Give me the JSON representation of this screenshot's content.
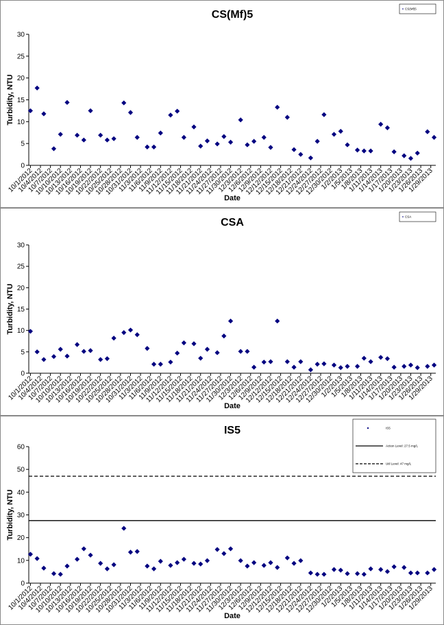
{
  "chart_data": [
    {
      "type": "scatter",
      "title": "CS(Mf)5",
      "x_label": "Date",
      "y_label": "Turbidity, NTU",
      "categories": [
        "10/1/2012",
        null,
        null,
        "10/4/2012",
        null,
        null,
        "10/7/2012",
        null,
        null,
        "10/10/2012",
        null,
        null,
        "10/13/2012",
        null,
        null,
        "10/16/2012",
        null,
        null,
        "10/19/2012",
        null,
        null,
        "10/22/2012",
        null,
        null,
        "10/25/2012",
        null,
        null,
        "10/28/2012",
        null,
        null,
        "10/31/2012",
        null,
        null,
        "11/3/2012",
        null,
        null,
        "11/6/2012",
        null,
        null,
        "11/9/2012",
        null,
        null,
        "11/12/2012",
        null,
        null,
        "11/15/2012",
        null,
        null,
        "11/18/2012",
        null,
        null,
        "11/21/2012",
        null,
        null,
        "11/24/2012",
        null,
        null,
        "11/27/2012",
        null,
        null,
        "11/30/2012",
        null,
        null,
        "12/3/2012",
        null,
        null,
        "12/6/2012",
        null,
        null,
        "12/9/2012",
        null,
        null,
        "12/12/2012",
        null,
        null,
        "12/15/2012",
        null,
        null,
        "12/18/2012",
        null,
        null,
        "12/21/2012",
        null,
        null,
        "12/24/2012",
        null,
        null,
        "12/27/2012",
        null,
        null,
        "12/30/2012",
        null,
        null,
        "1/2/2013",
        null,
        null,
        "1/5/2013",
        null,
        null,
        "1/8/2013",
        null,
        null,
        "1/11/2013",
        null,
        null,
        "1/14/2013",
        null,
        null,
        "1/17/2013",
        null,
        null,
        "1/20/2013",
        null,
        null,
        "1/23/2013",
        null,
        null,
        "1/26/2013",
        null,
        null,
        "1/29/2013",
        null
      ],
      "series": [
        {
          "name": "CS(Mf)5",
          "color": "#000080",
          "values": [
            12.5,
            null,
            17.7,
            null,
            11.8,
            null,
            null,
            3.8,
            null,
            7.1,
            null,
            14.4,
            null,
            null,
            6.9,
            null,
            5.8,
            null,
            12.5,
            null,
            null,
            6.9,
            null,
            5.8,
            null,
            6.1,
            null,
            null,
            14.3,
            null,
            12.1,
            null,
            6.4,
            null,
            null,
            4.2,
            null,
            4.2,
            null,
            7.4,
            null,
            null,
            11.5,
            null,
            12.4,
            null,
            6.4,
            null,
            null,
            8.8,
            null,
            4.4,
            null,
            5.6,
            null,
            null,
            4.9,
            null,
            6.6,
            null,
            5.3,
            null,
            null,
            10.4,
            null,
            4.7,
            null,
            5.5,
            null,
            null,
            6.4,
            null,
            4.1,
            null,
            13.3,
            null,
            null,
            11,
            null,
            3.6,
            null,
            2.5,
            null,
            null,
            1.7,
            null,
            5.5,
            null,
            11.6,
            null,
            null,
            7.1,
            null,
            7.8,
            null,
            4.7,
            null,
            null,
            3.5,
            null,
            3.3,
            null,
            3.3,
            null,
            null,
            9.4,
            null,
            8.6,
            null,
            3.1,
            null,
            null,
            2.2,
            null,
            1.6,
            null,
            2.8,
            null,
            null,
            7.7,
            null,
            6.4
          ]
        }
      ],
      "ylim": [
        0,
        30
      ],
      "yticks": [
        0,
        5,
        10,
        15,
        20,
        25,
        30
      ]
    },
    {
      "type": "scatter",
      "title": "CSA",
      "x_label": "Date",
      "y_label": "Turbidity, NTU",
      "categories": [
        "10/1/2012",
        null,
        null,
        "10/4/2012",
        null,
        null,
        "10/7/2012",
        null,
        null,
        "10/10/2012",
        null,
        null,
        "10/13/2012",
        null,
        null,
        "10/16/2012",
        null,
        null,
        "10/19/2012",
        null,
        null,
        "10/22/2012",
        null,
        null,
        "10/25/2012",
        null,
        null,
        "10/28/2012",
        null,
        null,
        "10/31/2012",
        null,
        null,
        "11/3/2012",
        null,
        null,
        "11/6/2012",
        null,
        null,
        "11/9/2012",
        null,
        null,
        "11/12/2012",
        null,
        null,
        "11/15/2012",
        null,
        null,
        "11/18/2012",
        null,
        null,
        "11/21/2012",
        null,
        null,
        "11/24/2012",
        null,
        null,
        "11/27/2012",
        null,
        null,
        "11/30/2012",
        null,
        null,
        "12/3/2012",
        null,
        null,
        "12/6/2012",
        null,
        null,
        "12/9/2012",
        null,
        null,
        "12/12/2012",
        null,
        null,
        "12/15/2012",
        null,
        null,
        "12/18/2012",
        null,
        null,
        "12/21/2012",
        null,
        null,
        "12/24/2012",
        null,
        null,
        "12/27/2012",
        null,
        null,
        "12/30/2012",
        null,
        null,
        "1/2/2013",
        null,
        null,
        "1/5/2013",
        null,
        null,
        "1/8/2013",
        null,
        null,
        "1/11/2013",
        null,
        null,
        "1/14/2013",
        null,
        null,
        "1/17/2013",
        null,
        null,
        "1/20/2013",
        null,
        null,
        "1/23/2013",
        null,
        null,
        "1/26/2013",
        null,
        null,
        "1/29/2013",
        null
      ],
      "series": [
        {
          "name": "CSA",
          "color": "#000080",
          "values": [
            9.8,
            null,
            5.0,
            null,
            3.2,
            null,
            null,
            3.9,
            null,
            5.6,
            null,
            4.0,
            null,
            null,
            6.7,
            null,
            5.1,
            null,
            5.3,
            null,
            null,
            3.2,
            null,
            3.4,
            null,
            8.2,
            null,
            null,
            9.5,
            null,
            10.1,
            null,
            9.0,
            null,
            null,
            5.8,
            null,
            2.1,
            null,
            2.1,
            null,
            null,
            2.6,
            null,
            4.7,
            null,
            7.1,
            null,
            null,
            6.9,
            null,
            3.5,
            null,
            5.6,
            null,
            null,
            4.8,
            null,
            8.7,
            null,
            12.2,
            null,
            null,
            5.1,
            null,
            5.1,
            null,
            1.4,
            null,
            null,
            2.6,
            null,
            2.7,
            null,
            12.2,
            null,
            null,
            2.7,
            null,
            1.4,
            null,
            2.7,
            null,
            null,
            0.8,
            null,
            2.1,
            null,
            2.2,
            null,
            null,
            1.9,
            null,
            1.3,
            null,
            1.6,
            null,
            null,
            1.6,
            null,
            3.5,
            null,
            2.7,
            null,
            null,
            3.7,
            null,
            3.4,
            null,
            1.4,
            null,
            null,
            1.6,
            null,
            1.9,
            null,
            1.3,
            null,
            null,
            1.6,
            null,
            1.9
          ]
        }
      ],
      "ylim": [
        0,
        30
      ],
      "yticks": [
        0,
        5,
        10,
        15,
        20,
        25,
        30
      ]
    },
    {
      "type": "scatter",
      "title": "IS5",
      "x_label": "Date",
      "y_label": "Turbidity, NTU",
      "categories": [
        "10/1/2012",
        null,
        null,
        "10/4/2012",
        null,
        null,
        "10/7/2012",
        null,
        null,
        "10/10/2012",
        null,
        null,
        "10/13/2012",
        null,
        null,
        "10/16/2012",
        null,
        null,
        "10/19/2012",
        null,
        null,
        "10/22/2012",
        null,
        null,
        "10/25/2012",
        null,
        null,
        "10/28/2012",
        null,
        null,
        "10/31/2012",
        null,
        null,
        "11/3/2012",
        null,
        null,
        "11/6/2012",
        null,
        null,
        "11/9/2012",
        null,
        null,
        "11/12/2012",
        null,
        null,
        "11/15/2012",
        null,
        null,
        "11/18/2012",
        null,
        null,
        "11/21/2012",
        null,
        null,
        "11/24/2012",
        null,
        null,
        "11/27/2012",
        null,
        null,
        "11/30/2012",
        null,
        null,
        "12/3/2012",
        null,
        null,
        "12/6/2012",
        null,
        null,
        "12/9/2012",
        null,
        null,
        "12/12/2012",
        null,
        null,
        "12/15/2012",
        null,
        null,
        "12/18/2012",
        null,
        null,
        "12/21/2012",
        null,
        null,
        "12/24/2012",
        null,
        null,
        "12/27/2012",
        null,
        null,
        "12/30/2012",
        null,
        null,
        "1/2/2013",
        null,
        null,
        "1/5/2013",
        null,
        null,
        "1/8/2013",
        null,
        null,
        "1/11/2013",
        null,
        null,
        "1/14/2013",
        null,
        null,
        "1/17/2013",
        null,
        null,
        "1/20/2013",
        null,
        null,
        "1/23/2013",
        null,
        null,
        "1/26/2013",
        null,
        null,
        "1/29/2013",
        null
      ],
      "series": [
        {
          "name": "IS5",
          "color": "#000080",
          "values": [
            12.7,
            null,
            10.8,
            null,
            6.6,
            null,
            null,
            4.2,
            null,
            3.9,
            null,
            7.5,
            null,
            null,
            10.5,
            null,
            15.1,
            null,
            12.3,
            null,
            null,
            8.7,
            null,
            6.3,
            null,
            8.1,
            null,
            null,
            24.1,
            null,
            13.6,
            null,
            13.9,
            null,
            null,
            7.5,
            null,
            6.3,
            null,
            9.6,
            null,
            null,
            7.8,
            null,
            9.0,
            null,
            10.5,
            null,
            null,
            8.7,
            null,
            8.4,
            null,
            9.9,
            null,
            null,
            14.8,
            null,
            13.0,
            null,
            15.1,
            null,
            null,
            9.9,
            null,
            7.5,
            null,
            9.0,
            null,
            null,
            7.8,
            null,
            9.0,
            null,
            6.9,
            null,
            null,
            11.1,
            null,
            8.7,
            null,
            9.9,
            null,
            null,
            4.5,
            null,
            3.9,
            null,
            3.9,
            null,
            null,
            6.0,
            null,
            5.7,
            null,
            4.2,
            null,
            null,
            4.2,
            null,
            3.9,
            null,
            6.3,
            null,
            null,
            6.0,
            null,
            5.1,
            null,
            7.2,
            null,
            null,
            6.9,
            null,
            4.5,
            null,
            4.5,
            null,
            null,
            4.5,
            null,
            6.0
          ]
        }
      ],
      "reference_lines": [
        {
          "name": "Action Level: 27.5 mg/L",
          "value": 27.5,
          "style": "solid",
          "color": "#000000"
        },
        {
          "name": "Util Level: 47 mg/L",
          "value": 47,
          "style": "dashed",
          "color": "#000000"
        }
      ],
      "ylim": [
        0,
        60
      ],
      "yticks": [
        0,
        10,
        20,
        30,
        40,
        50,
        60
      ]
    }
  ]
}
